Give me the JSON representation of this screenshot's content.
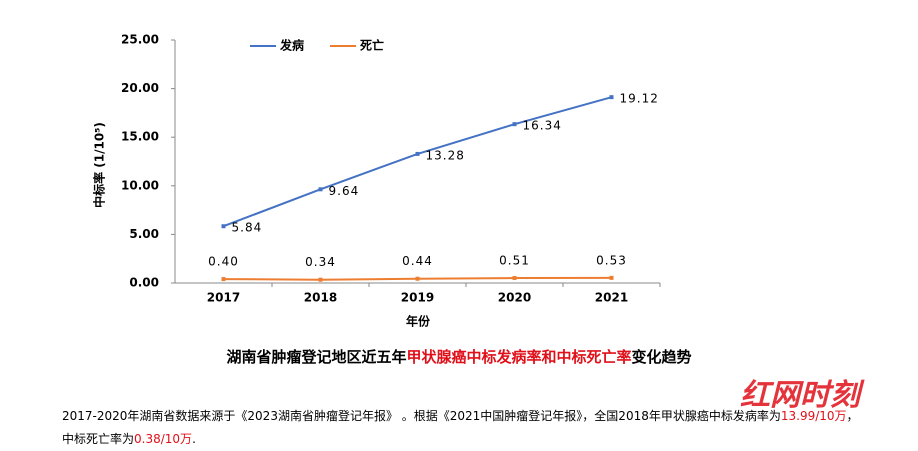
{
  "chart_data": {
    "type": "line",
    "ylabel": "中标率 (1/10⁵)",
    "xlabel": "年份",
    "categories": [
      "2017",
      "2018",
      "2019",
      "2020",
      "2021"
    ],
    "series": [
      {
        "name": "发病",
        "color": "#4472c4",
        "values": [
          5.84,
          9.64,
          13.28,
          16.34,
          19.12
        ],
        "value_labels": [
          "5.84",
          "9.64",
          "13.28",
          "16.34",
          "19.12"
        ]
      },
      {
        "name": "死亡",
        "color": "#ed7d31",
        "values": [
          0.4,
          0.34,
          0.44,
          0.51,
          0.53
        ],
        "value_labels": [
          "0.40",
          "0.34",
          "0.44",
          "0.51",
          "0.53"
        ]
      }
    ],
    "ylim": [
      0,
      25
    ],
    "yticks": [
      {
        "value": 0,
        "label": "0.00"
      },
      {
        "value": 5,
        "label": "5.00"
      },
      {
        "value": 10,
        "label": "10.00"
      },
      {
        "value": 15,
        "label": "15.00"
      },
      {
        "value": 20,
        "label": "20.00"
      },
      {
        "value": 25,
        "label": "25.00"
      }
    ],
    "grid": false,
    "legend": "top"
  },
  "caption": {
    "parts": [
      "湖南省肿瘤登记地区近五年",
      "甲状腺癌中标发病率和中标死亡率",
      "变化趋势"
    ]
  },
  "note": {
    "parts": [
      "2017-2020年湖南省数据来源于《2023湖南省肿瘤登记年报》 。根据《2021中国肿瘤登记年报》，全国2018年甲状腺癌中标发病率为",
      "13.99/10万",
      "，",
      "中标死亡率为",
      "0.38/10万",
      "."
    ]
  },
  "watermark": "红网时刻"
}
